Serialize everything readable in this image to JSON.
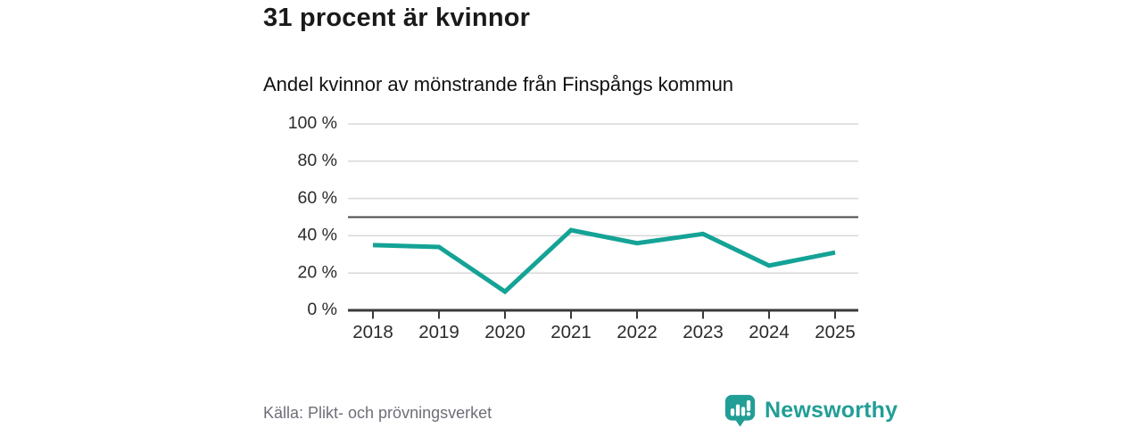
{
  "header": {
    "title": "31 procent är kvinnor",
    "subtitle": "Andel kvinnor av mönstrande från Finspångs kommun"
  },
  "footer": {
    "source": "Källa: Plikt- och prövningsverket",
    "brand": "Newsworthy"
  },
  "colors": {
    "line": "#14a396",
    "brand": "#219e96",
    "grid": "#d8d8d8",
    "reference_line": "#4a4a4a",
    "axis": "#3a3a3a",
    "tick_label": "#2b2b2b",
    "title_text": "#1a1a1a",
    "source_text": "#6e6e78",
    "logo_glyph": "#ffffff",
    "background": "#ffffff"
  },
  "chart_data": {
    "type": "line",
    "x": [
      2018,
      2019,
      2020,
      2021,
      2022,
      2023,
      2024,
      2025
    ],
    "series": [
      {
        "name": "Andel kvinnor av mönstrande",
        "values": [
          35,
          34,
          10,
          43,
          36,
          41,
          24,
          31
        ],
        "color": "#14a396"
      }
    ],
    "title": "31 procent är kvinnor",
    "subtitle": "Andel kvinnor av mönstrande från Finspångs kommun",
    "xlabel": "",
    "ylabel": "",
    "ylim": [
      0,
      100
    ],
    "yticks": [
      0,
      20,
      40,
      60,
      80,
      100
    ],
    "ytick_suffix": " %",
    "reference_line": 50,
    "grid": true,
    "legend": false
  }
}
